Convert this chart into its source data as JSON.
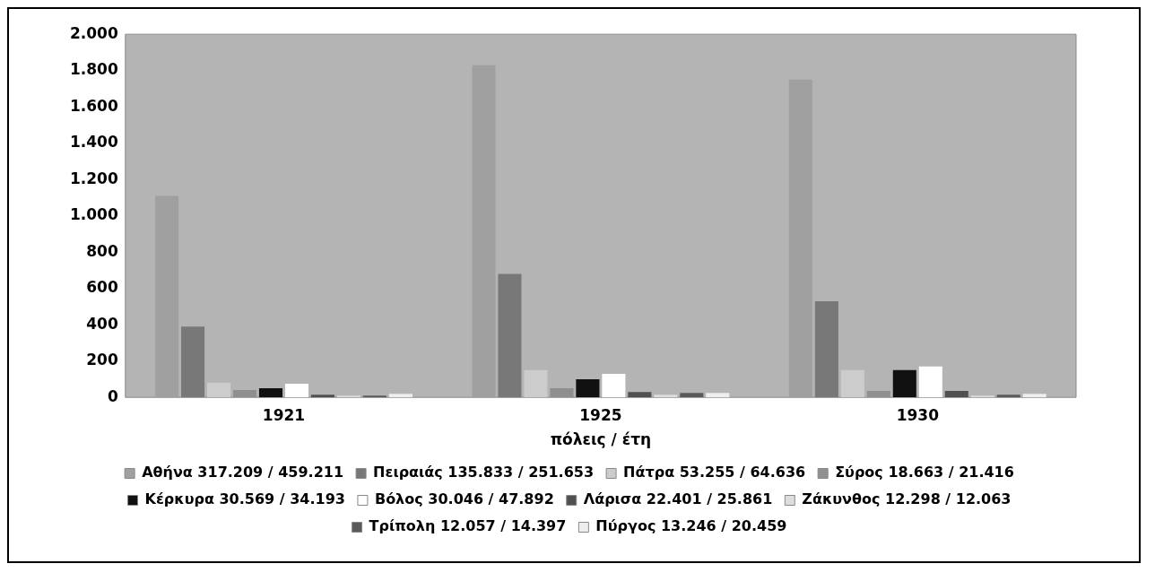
{
  "chart_data": {
    "type": "bar",
    "xlabel": "πόλεις / έτη",
    "categories": [
      "1921",
      "1925",
      "1930"
    ],
    "ylim": [
      0,
      2000
    ],
    "yticks": [
      0,
      200,
      400,
      600,
      800,
      {
        "value": 1000,
        "label": "1.000"
      },
      {
        "value": 1200,
        "label": "1.200"
      },
      {
        "value": 1400,
        "label": "1.400"
      },
      {
        "value": 1600,
        "label": "1.600"
      },
      {
        "value": 1800,
        "label": "1.800"
      },
      {
        "value": 2000,
        "label": "2.000"
      }
    ],
    "legend": "bottom",
    "series": [
      {
        "name": "Αθήνα 317.209 / 459.211",
        "color": "#a0a0a0",
        "values": [
          1110,
          1830,
          1750
        ]
      },
      {
        "name": "Πειραιάς 135.833 / 251.653",
        "color": "#787878",
        "values": [
          390,
          680,
          530
        ]
      },
      {
        "name": "Πάτρα 53.255 / 64.636",
        "color": "#cccccc",
        "values": [
          80,
          150,
          150
        ]
      },
      {
        "name": "Σύρος 18.663 / 21.416",
        "color": "#8f8f8f",
        "values": [
          40,
          50,
          35
        ]
      },
      {
        "name": "Κέρκυρα 30.569 / 34.193",
        "color": "#111111",
        "values": [
          50,
          100,
          150
        ]
      },
      {
        "name": "Βόλος 30.046 / 47.892",
        "color": "#ffffff",
        "values": [
          75,
          130,
          170
        ]
      },
      {
        "name": "Λάρισα 22.401 / 25.861",
        "color": "#505050",
        "values": [
          15,
          30,
          35
        ]
      },
      {
        "name": "Ζάκυνθος 12.298 / 12.063",
        "color": "#dddddd",
        "values": [
          10,
          15,
          10
        ]
      },
      {
        "name": "Τρίπολη 12.057 / 14.397",
        "color": "#5a5a5a",
        "values": [
          10,
          25,
          15
        ]
      },
      {
        "name": "Πύργος 13.246 / 20.459",
        "color": "#eeeeee",
        "values": [
          20,
          25,
          20
        ]
      }
    ]
  }
}
